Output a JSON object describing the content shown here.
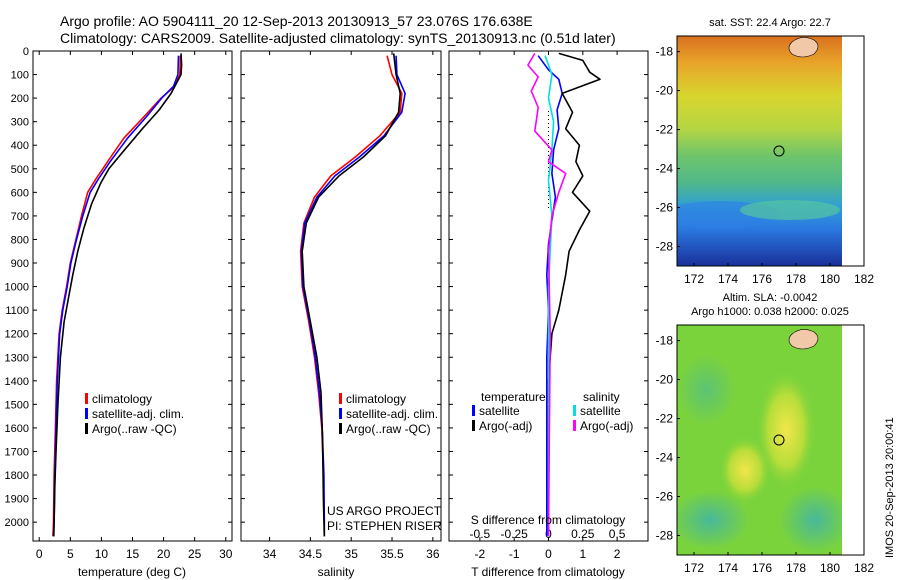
{
  "header": {
    "line1": "Argo profile: AO 5904111_20 12-Sep-2013 20130913_57 23.076S 176.638E",
    "line2": "Climatology: CARS2009. Satellite-adjusted climatology: synTS_20130913.nc (0.51d later)"
  },
  "sidebar_note": "IMOS 20-Sep-2013 20:00:41",
  "colors": {
    "climatology": "#ff0000",
    "satellite": "#0000ff",
    "argo": "#000000",
    "salinity_satellite": "#00e0e0",
    "salinity_argo": "#ff00ff"
  },
  "chart_data": [
    {
      "type": "line",
      "id": "temperature",
      "xlabel": "temperature (deg C)",
      "ylabel": "",
      "xlim": [
        -1,
        31
      ],
      "ylim": [
        2080,
        0
      ],
      "xticks": [
        0,
        5,
        10,
        15,
        20,
        25,
        30
      ],
      "yticks": [
        0,
        100,
        200,
        300,
        400,
        500,
        600,
        700,
        800,
        900,
        1000,
        1100,
        1200,
        1300,
        1400,
        1500,
        1600,
        1700,
        1800,
        1900,
        2000
      ],
      "legend": [
        "climatology",
        "satellite-adj. clim.",
        "Argo(..raw -QC)"
      ],
      "legend_position": "bottom-center",
      "series": [
        {
          "name": "climatology",
          "color": "#ff0000",
          "x": [
            22.7,
            22.6,
            21.8,
            19.6,
            16.8,
            13.6,
            11.0,
            9.2,
            7.8,
            6.8,
            5.9,
            5.0,
            4.4,
            3.7,
            3.2,
            2.8,
            2.6,
            2.4,
            2.3,
            2.2
          ],
          "y": [
            20,
            100,
            150,
            200,
            280,
            370,
            470,
            540,
            600,
            700,
            800,
            900,
            1000,
            1100,
            1200,
            1400,
            1600,
            1800,
            2000,
            2060
          ]
        },
        {
          "name": "satellite-adj. clim.",
          "color": "#0000ff",
          "x": [
            22.4,
            22.3,
            21.6,
            19.7,
            17.2,
            14.2,
            11.4,
            9.6,
            8.2,
            7.0,
            6.0,
            5.1,
            4.5,
            3.8,
            3.3,
            2.9,
            2.7,
            2.5,
            2.4,
            2.3
          ],
          "y": [
            20,
            100,
            150,
            200,
            280,
            370,
            470,
            540,
            600,
            700,
            800,
            900,
            1000,
            1100,
            1200,
            1400,
            1600,
            1800,
            2000,
            2060
          ]
        },
        {
          "name": "Argo(..raw -QC)",
          "color": "#000000",
          "x": [
            22.8,
            22.9,
            22.8,
            21.2,
            19.3,
            16.6,
            13.4,
            11.2,
            9.9,
            8.4,
            7.2,
            6.2,
            5.4,
            4.7,
            4.0,
            3.4,
            3.0,
            2.7,
            2.5,
            2.4,
            2.35
          ],
          "y": [
            10,
            60,
            100,
            180,
            250,
            330,
            430,
            500,
            560,
            650,
            750,
            850,
            950,
            1050,
            1150,
            1300,
            1500,
            1700,
            1850,
            2000,
            2060
          ]
        }
      ],
      "annotations": []
    },
    {
      "type": "line",
      "id": "salinity",
      "xlabel": "salinity",
      "ylabel": "",
      "xlim": [
        33.65,
        36.1
      ],
      "ylim": [
        2080,
        0
      ],
      "xticks": [
        34,
        34.5,
        35,
        35.5,
        36
      ],
      "legend": [
        "climatology",
        "satellite-adj. clim.",
        "Argo(..raw -QC)"
      ],
      "legend_position": "bottom-center",
      "series": [
        {
          "name": "climatology",
          "color": "#ff0000",
          "x": [
            35.44,
            35.5,
            35.62,
            35.6,
            35.35,
            35.05,
            34.75,
            34.55,
            34.42,
            34.38,
            34.4,
            34.48,
            34.55,
            34.6,
            34.64,
            34.66,
            34.67,
            34.67
          ],
          "y": [
            20,
            100,
            180,
            260,
            360,
            450,
            530,
            620,
            730,
            850,
            1000,
            1150,
            1300,
            1450,
            1600,
            1800,
            2000,
            2060
          ]
        },
        {
          "name": "satellite-adj. clim.",
          "color": "#0000ff",
          "x": [
            35.55,
            35.56,
            35.66,
            35.62,
            35.4,
            35.1,
            34.8,
            34.58,
            34.43,
            34.39,
            34.41,
            34.49,
            34.56,
            34.61,
            34.645,
            34.665,
            34.67,
            34.67
          ],
          "y": [
            20,
            100,
            180,
            260,
            360,
            450,
            530,
            620,
            730,
            850,
            1000,
            1150,
            1300,
            1450,
            1600,
            1800,
            2000,
            2060
          ]
        },
        {
          "name": "Argo(..raw -QC)",
          "color": "#000000",
          "x": [
            35.52,
            35.55,
            35.6,
            35.58,
            35.42,
            35.15,
            34.85,
            34.6,
            34.45,
            34.4,
            34.42,
            34.5,
            34.58,
            34.63,
            34.65,
            34.66,
            34.67
          ],
          "y": [
            10,
            100,
            180,
            260,
            360,
            450,
            530,
            620,
            730,
            850,
            1000,
            1150,
            1300,
            1450,
            1650,
            1900,
            2060
          ]
        }
      ],
      "annotations": [
        "US ARGO PROJECT",
        "PI: STEPHEN RISER"
      ]
    },
    {
      "type": "line",
      "id": "difference",
      "xlabel": "T difference from climatology",
      "x2label": "S difference from climatology",
      "ylabel": "",
      "xlim": [
        -2.9,
        2.9
      ],
      "ylim": [
        2080,
        0
      ],
      "xticks": [
        -2,
        -1,
        0,
        1,
        2
      ],
      "x2ticks": [
        "-0.5",
        "-0.25",
        "0",
        "0.25",
        "0.5"
      ],
      "legend_groups": [
        {
          "title": "temperature",
          "entries": [
            "satellite",
            "Argo(-adj)"
          ]
        },
        {
          "title": "salinity",
          "entries": [
            "satellite",
            "Argo(-adj)"
          ]
        }
      ],
      "legend_position": "bottom-center",
      "series": [
        {
          "name": "temperature satellite",
          "color": "#0000ff",
          "x": [
            -0.3,
            0.0,
            0.3,
            0.4,
            0.25,
            0.3,
            0.15,
            0.1,
            0.2,
            0.1,
            0.0,
            -0.05,
            0.0,
            -0.05,
            -0.05,
            -0.05,
            -0.05
          ],
          "y": [
            20,
            80,
            120,
            180,
            250,
            330,
            420,
            520,
            620,
            720,
            820,
            950,
            1100,
            1300,
            1600,
            1900,
            2060
          ]
        },
        {
          "name": "temperature Argo(-adj)",
          "color": "#000000",
          "x": [
            0.3,
            1.0,
            1.2,
            1.5,
            0.4,
            0.7,
            0.5,
            0.9,
            0.8,
            1.0,
            0.7,
            1.2,
            0.9,
            0.6,
            0.5,
            0.3,
            0.1,
            0.0,
            0.0,
            0.0
          ],
          "y": [
            10,
            40,
            90,
            120,
            180,
            260,
            330,
            400,
            470,
            530,
            600,
            680,
            760,
            850,
            950,
            1100,
            1200,
            1400,
            1800,
            2060
          ]
        },
        {
          "name": "salinity satellite",
          "color": "#00e0e0",
          "x": [
            -0.1,
            0.1,
            0.0,
            0.15,
            0.1,
            0.0,
            0.1,
            0.05,
            0.0,
            0.0,
            0.0,
            0.0
          ],
          "y": [
            20,
            100,
            200,
            300,
            420,
            550,
            700,
            850,
            1000,
            1300,
            1700,
            2060
          ]
        },
        {
          "name": "salinity Argo(-adj)",
          "color": "#ff00ff",
          "x": [
            -0.4,
            -0.6,
            -0.3,
            -0.5,
            -0.3,
            -0.4,
            0.1,
            0.0,
            0.5,
            0.3,
            0.1,
            0.0,
            0.05,
            0.0
          ],
          "y": [
            10,
            60,
            110,
            170,
            240,
            340,
            420,
            470,
            520,
            600,
            700,
            850,
            1200,
            2060
          ]
        }
      ],
      "annotations": []
    },
    {
      "type": "heatmap",
      "id": "sst-map",
      "title": "sat. SST: 22.4 Argo: 22.7",
      "xlim": [
        171,
        182
      ],
      "ylim": [
        -29,
        -17.2
      ],
      "xticks": [
        172,
        174,
        176,
        178,
        180,
        182
      ],
      "yticks": [
        -18,
        -20,
        -22,
        -24,
        -26,
        -28
      ],
      "argo_position": {
        "lon": 176.638,
        "lat": -23.076
      }
    },
    {
      "type": "heatmap",
      "id": "sla-map",
      "title": "Altim. SLA: -0.0042",
      "subtitle": "Argo h1000: 0.038 h2000: 0.025",
      "xlim": [
        171,
        182
      ],
      "ylim": [
        -29,
        -17.2
      ],
      "xticks": [
        172,
        174,
        176,
        178,
        180,
        182
      ],
      "yticks": [
        -18,
        -20,
        -22,
        -24,
        -26,
        -28
      ],
      "argo_position": {
        "lon": 176.638,
        "lat": -23.076
      }
    }
  ]
}
